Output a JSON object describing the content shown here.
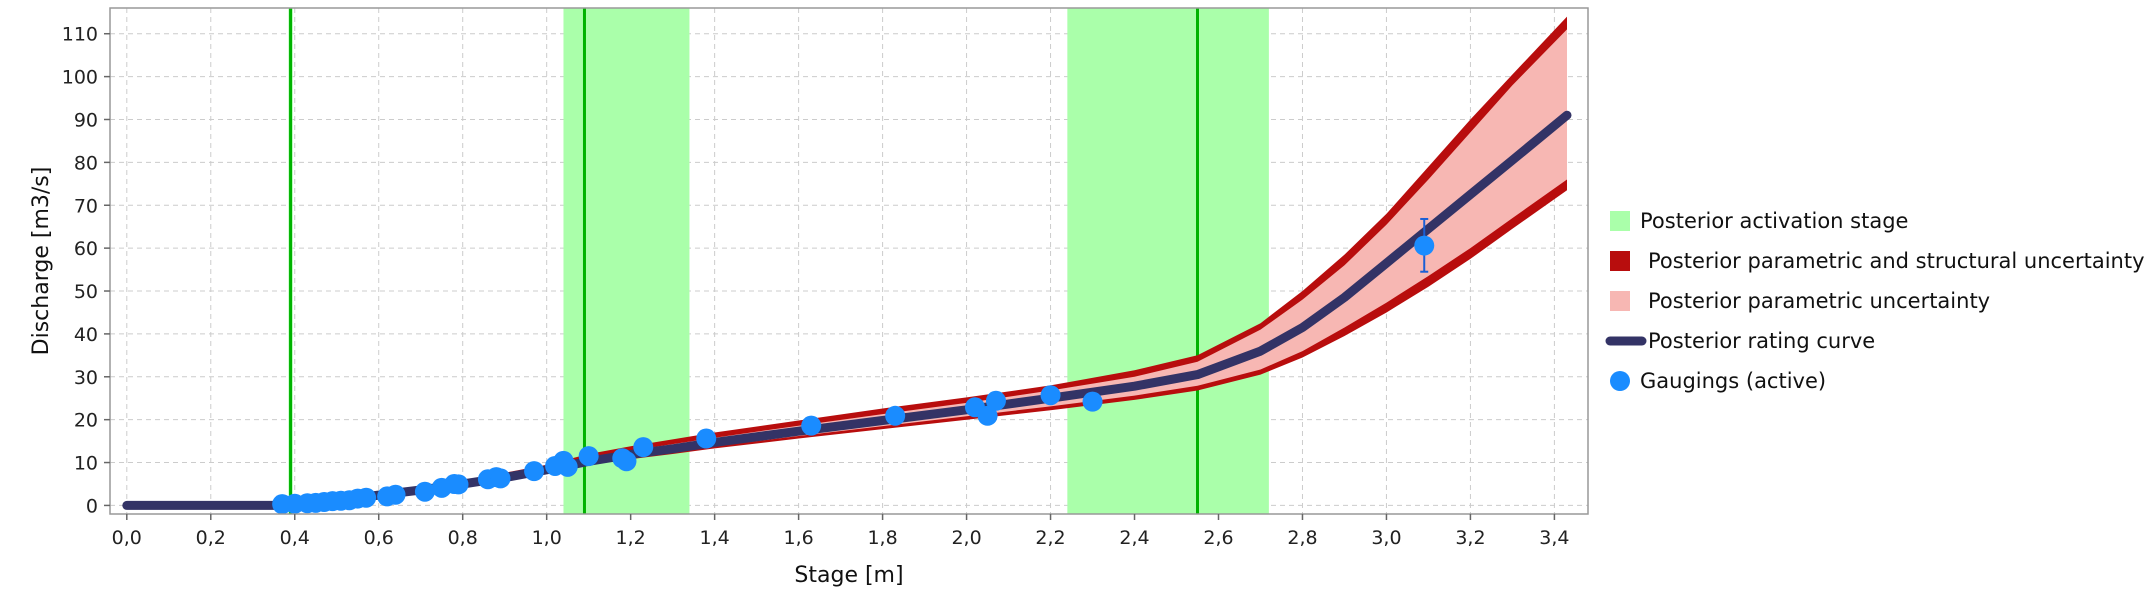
{
  "chart_data": {
    "type": "line",
    "xlabel": "Stage  [m]",
    "ylabel": "Discharge [m3/s]",
    "xlim": [
      -0.04,
      3.48
    ],
    "ylim": [
      -2,
      116
    ],
    "grid": true,
    "decimal_separator": ",",
    "x_ticks": [
      0.0,
      0.2,
      0.4,
      0.6,
      0.8,
      1.0,
      1.2,
      1.4,
      1.6,
      1.8,
      2.0,
      2.2,
      2.4,
      2.6,
      2.8,
      3.0,
      3.2,
      3.4
    ],
    "x_tick_labels": [
      "0,0",
      "0,2",
      "0,4",
      "0,6",
      "0,8",
      "1,0",
      "1,2",
      "1,4",
      "1,6",
      "1,8",
      "2,0",
      "2,2",
      "2,4",
      "2,6",
      "2,8",
      "3,0",
      "3,2",
      "3,4"
    ],
    "y_ticks": [
      0,
      10,
      20,
      30,
      40,
      50,
      60,
      70,
      80,
      90,
      100,
      110
    ],
    "y_tick_labels": [
      "0",
      "10",
      "20",
      "30",
      "40",
      "50",
      "60",
      "70",
      "80",
      "90",
      "100",
      "110"
    ],
    "legend_position": "right",
    "legend": [
      {
        "name": "Posterior activation stage",
        "color": "#aaffaa",
        "symbol": "square"
      },
      {
        "name": "Posterior parametric and structural uncertainty",
        "color": "#b80d0d",
        "symbol": "square"
      },
      {
        "name": "Posterior parametric uncertainty",
        "color": "#f7b7b3",
        "symbol": "square"
      },
      {
        "name": "Posterior rating curve",
        "color": "#333366",
        "symbol": "line"
      },
      {
        "name": "Gaugings (active)",
        "color": "#1a8cff",
        "symbol": "circle"
      }
    ],
    "activation_stages": [
      {
        "median": 0.39,
        "lower": 0.385,
        "upper": 0.395
      },
      {
        "median": 1.09,
        "lower": 1.04,
        "upper": 1.34
      },
      {
        "median": 2.55,
        "lower": 2.24,
        "upper": 2.72
      }
    ],
    "colors": {
      "activation_band": "#aaffaa",
      "activation_line": "#00b300",
      "total_uncertainty": "#b80d0d",
      "parametric_uncertainty": "#f7b7b3",
      "rating_curve": "#333366",
      "gaugings": "#1a8cff",
      "error_bar": "#1a5fd6",
      "grid": "#cccccc"
    },
    "rating_curve": {
      "x": [
        0.0,
        0.36,
        0.4,
        0.5,
        0.6,
        0.7,
        0.8,
        0.9,
        1.0,
        1.1,
        1.2,
        1.3,
        1.4,
        1.6,
        1.8,
        2.0,
        2.2,
        2.4,
        2.55,
        2.7,
        2.8,
        2.9,
        3.0,
        3.1,
        3.2,
        3.3,
        3.43
      ],
      "y": [
        0.0,
        0.0,
        0.3,
        1.2,
        2.4,
        3.6,
        5.0,
        6.5,
        8.3,
        10.3,
        11.9,
        13.2,
        14.7,
        17.3,
        19.8,
        22.3,
        25.0,
        27.8,
        30.5,
        36.0,
        41.5,
        48.5,
        56.5,
        64.5,
        72.5,
        80.5,
        91.0
      ],
      "total_lower": [
        0.0,
        0.0,
        0.2,
        1.0,
        2.0,
        3.0,
        4.4,
        5.8,
        7.6,
        9.4,
        10.8,
        12.0,
        13.3,
        15.6,
        17.8,
        20.0,
        22.2,
        24.6,
        26.8,
        30.5,
        34.5,
        39.5,
        45.0,
        51.0,
        57.5,
        64.5,
        73.5
      ],
      "param_lower": [
        0.0,
        0.0,
        0.2,
        1.1,
        2.2,
        3.3,
        4.7,
        6.1,
        7.9,
        9.8,
        11.3,
        12.5,
        13.8,
        16.2,
        18.5,
        20.8,
        23.1,
        25.6,
        27.9,
        31.7,
        36.0,
        41.5,
        47.3,
        53.5,
        60.0,
        67.0,
        76.0
      ],
      "param_upper": [
        0.0,
        0.0,
        0.4,
        1.3,
        2.6,
        3.9,
        5.4,
        7.0,
        8.8,
        11.1,
        12.8,
        14.3,
        15.8,
        18.6,
        21.3,
        23.9,
        26.8,
        30.0,
        33.5,
        41.0,
        48.0,
        56.0,
        65.5,
        76.0,
        87.0,
        98.0,
        111.0
      ],
      "total_upper": [
        0.0,
        0.0,
        0.5,
        1.5,
        2.9,
        4.3,
        5.9,
        7.6,
        9.5,
        12.0,
        13.8,
        15.4,
        17.0,
        19.8,
        22.6,
        25.2,
        28.0,
        31.5,
        35.0,
        42.5,
        50.0,
        58.5,
        68.0,
        79.0,
        90.0,
        100.5,
        114.0
      ]
    },
    "gaugings": {
      "x": [
        0.37,
        0.4,
        0.43,
        0.45,
        0.47,
        0.49,
        0.51,
        0.53,
        0.55,
        0.57,
        0.62,
        0.64,
        0.71,
        0.75,
        0.78,
        0.79,
        0.86,
        0.88,
        0.89,
        0.97,
        1.02,
        1.04,
        1.05,
        1.1,
        1.18,
        1.19,
        1.23,
        1.38,
        1.63,
        1.83,
        2.02,
        2.05,
        2.07,
        2.2,
        2.3,
        3.09
      ],
      "y": [
        0.3,
        0.4,
        0.5,
        0.6,
        0.8,
        1.0,
        1.1,
        1.2,
        1.6,
        1.8,
        2.1,
        2.5,
        3.2,
        4.1,
        5.0,
        4.9,
        6.1,
        6.6,
        6.3,
        8.0,
        9.2,
        10.4,
        9.0,
        11.5,
        11.0,
        10.3,
        13.6,
        15.6,
        18.6,
        20.9,
        22.9,
        20.9,
        24.4,
        25.7,
        24.2,
        60.6
      ],
      "err_low": [
        null,
        null,
        null,
        null,
        null,
        null,
        null,
        null,
        null,
        null,
        null,
        null,
        null,
        null,
        null,
        null,
        null,
        null,
        null,
        null,
        null,
        null,
        null,
        null,
        null,
        null,
        null,
        null,
        null,
        null,
        null,
        null,
        null,
        null,
        null,
        54.5
      ],
      "err_high": [
        null,
        null,
        null,
        null,
        null,
        null,
        null,
        null,
        null,
        null,
        null,
        null,
        null,
        null,
        null,
        null,
        null,
        null,
        null,
        null,
        null,
        null,
        null,
        null,
        null,
        null,
        null,
        null,
        null,
        null,
        null,
        null,
        null,
        null,
        null,
        66.8
      ]
    }
  }
}
